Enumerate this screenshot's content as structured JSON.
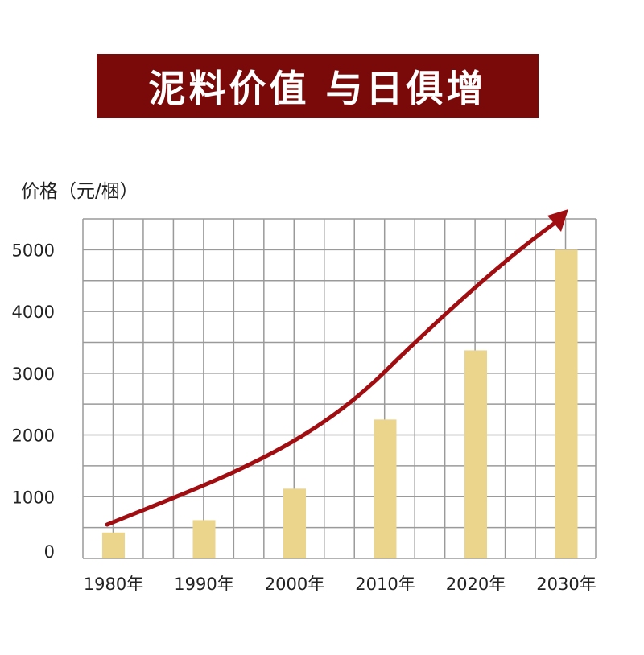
{
  "header": {
    "title": "泥料价值 与日俱增"
  },
  "chart_data": {
    "type": "bar",
    "ylabel": "价格（元/梱）",
    "categories": [
      "1980年",
      "1990年",
      "2000年",
      "2010年",
      "2020年",
      "2030年"
    ],
    "values": [
      420,
      620,
      1130,
      2250,
      3370,
      5000
    ],
    "ylim": [
      0,
      5500
    ],
    "yticks": [
      0,
      1000,
      2000,
      3000,
      4000,
      5000
    ],
    "grid": true,
    "trend_arrow": true,
    "colors": {
      "bar": "#ebd58c",
      "arrow": "#a00e12",
      "grid": "#9a9a9a",
      "banner": "#7a0a0a"
    }
  }
}
